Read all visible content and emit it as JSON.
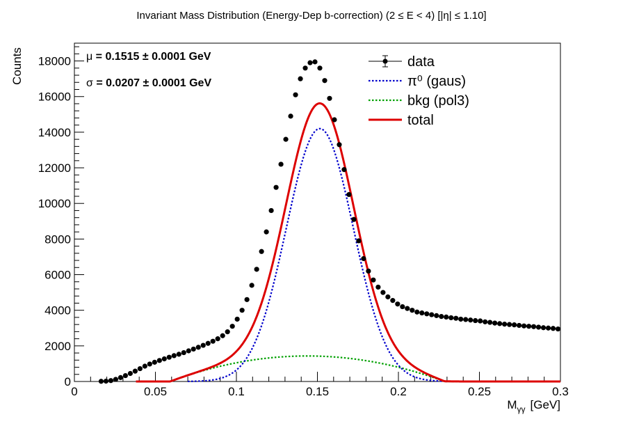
{
  "chart_data": {
    "type": "scatter",
    "title": "Invariant Mass Distribution (Energy-Dep b-correction)   (2 ≤ E < 4)   [|η| ≤ 1.10]",
    "xlabel": "M",
    "xlabel_sub": "γγ",
    "xlabel_unit": "[GeV]",
    "ylabel": "Counts",
    "xlim": [
      0,
      0.3
    ],
    "ylim": [
      0,
      19000
    ],
    "x_ticks": [
      {
        "value": 0,
        "label": "0"
      },
      {
        "value": 0.05,
        "label": "0.05"
      },
      {
        "value": 0.1,
        "label": "0.1"
      },
      {
        "value": 0.15,
        "label": "0.15"
      },
      {
        "value": 0.2,
        "label": "0.2"
      },
      {
        "value": 0.25,
        "label": "0.25"
      },
      {
        "value": 0.3,
        "label": "0.3"
      }
    ],
    "y_ticks": [
      {
        "value": 0,
        "label": "0"
      },
      {
        "value": 2000,
        "label": "2000"
      },
      {
        "value": 4000,
        "label": "4000"
      },
      {
        "value": 6000,
        "label": "6000"
      },
      {
        "value": 8000,
        "label": "8000"
      },
      {
        "value": 10000,
        "label": "10000"
      },
      {
        "value": 12000,
        "label": "12000"
      },
      {
        "value": 14000,
        "label": "14000"
      },
      {
        "value": 16000,
        "label": "16000"
      },
      {
        "value": 18000,
        "label": "18000"
      }
    ],
    "stats": {
      "mu_symbol": "μ",
      "mu_text": " = 0.1515  ± 0.0001 GeV",
      "sigma_symbol": "σ",
      "sigma_text": " = 0.0207  ± 0.0001 GeV"
    },
    "legend": {
      "position": "top-right",
      "entries": [
        {
          "label": "data",
          "style": "marker"
        },
        {
          "label": "π⁰ (gaus)",
          "style": "dotted",
          "color": "#0000cc"
        },
        {
          "label": "bkg (pol3)",
          "style": "dotted",
          "color": "#00a000"
        },
        {
          "label": "total",
          "style": "solid",
          "color": "#dd0000"
        }
      ]
    },
    "data_series": {
      "name": "data",
      "color": "#000000",
      "x": [
        0.0165,
        0.0195,
        0.0225,
        0.0255,
        0.0285,
        0.0315,
        0.0345,
        0.0375,
        0.0405,
        0.0435,
        0.0465,
        0.0495,
        0.0525,
        0.0555,
        0.0585,
        0.0615,
        0.0645,
        0.0675,
        0.0705,
        0.0735,
        0.0765,
        0.0795,
        0.0825,
        0.0855,
        0.0885,
        0.0915,
        0.0945,
        0.0975,
        0.1005,
        0.1035,
        0.1065,
        0.1095,
        0.1125,
        0.1155,
        0.1185,
        0.1215,
        0.1245,
        0.1275,
        0.1305,
        0.1335,
        0.1365,
        0.1395,
        0.1425,
        0.1455,
        0.1485,
        0.1515,
        0.1545,
        0.1575,
        0.1605,
        0.1635,
        0.1665,
        0.1695,
        0.1725,
        0.1755,
        0.1785,
        0.1815,
        0.1845,
        0.1875,
        0.1905,
        0.1935,
        0.1965,
        0.1995,
        0.2025,
        0.2055,
        0.2085,
        0.2115,
        0.2145,
        0.2175,
        0.2205,
        0.2235,
        0.2265,
        0.2295,
        0.2325,
        0.2355,
        0.2385,
        0.2415,
        0.2445,
        0.2475,
        0.2505,
        0.2535,
        0.2565,
        0.2595,
        0.2625,
        0.2655,
        0.2685,
        0.2715,
        0.2745,
        0.2775,
        0.2805,
        0.2835,
        0.2865,
        0.2895,
        0.2925,
        0.2955,
        0.2985
      ],
      "y": [
        10,
        20,
        50,
        120,
        220,
        330,
        450,
        580,
        720,
        860,
        980,
        1080,
        1180,
        1270,
        1360,
        1450,
        1530,
        1620,
        1720,
        1820,
        1920,
        2030,
        2140,
        2260,
        2400,
        2570,
        2790,
        3100,
        3500,
        4000,
        4600,
        5400,
        6300,
        7300,
        8400,
        9600,
        10900,
        12200,
        13600,
        14900,
        16100,
        17000,
        17600,
        17900,
        17950,
        17600,
        16900,
        15900,
        14700,
        13300,
        11900,
        10500,
        9100,
        7900,
        6900,
        6200,
        5700,
        5300,
        5000,
        4750,
        4550,
        4350,
        4200,
        4100,
        4000,
        3900,
        3850,
        3800,
        3750,
        3700,
        3650,
        3620,
        3580,
        3550,
        3500,
        3480,
        3450,
        3420,
        3400,
        3350,
        3320,
        3280,
        3250,
        3220,
        3200,
        3180,
        3150,
        3120,
        3100,
        3080,
        3050,
        3020,
        3000,
        2980,
        2950
      ]
    },
    "signal_fit": {
      "name": "π⁰ (gaus)",
      "function": "gaus",
      "amplitude": 14200,
      "mean": 0.1515,
      "sigma": 0.0207,
      "x_range": [
        0.07,
        0.3
      ],
      "color": "#0000cc"
    },
    "background_fit": {
      "name": "bkg (pol3)",
      "function": "pol3",
      "coeffs": [
        -2700,
        57500,
        -200000,
        0
      ],
      "x_range": [
        0.065,
        0.3
      ],
      "color": "#00a000"
    },
    "total_fit": {
      "name": "total",
      "x_range": [
        0.038,
        0.3
      ],
      "color": "#dd0000"
    }
  }
}
